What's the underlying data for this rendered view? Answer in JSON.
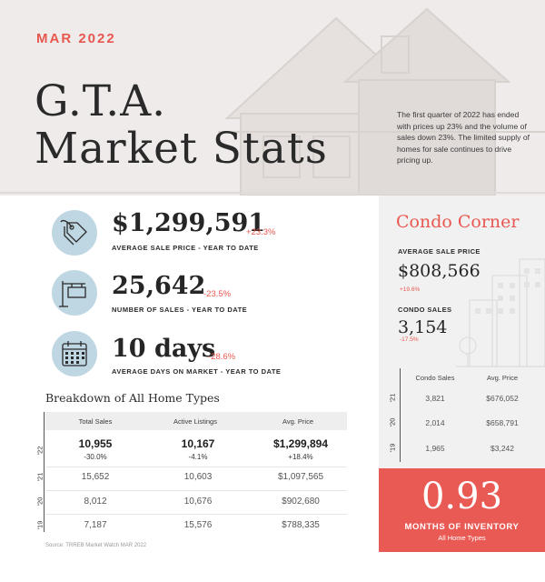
{
  "header": {
    "month": "MAR 2022",
    "title_line1": "G.T.A.",
    "title_line2": "Market Stats",
    "intro": "The first quarter of 2022 has ended with prices up 23% and the volume of sales down 23%. The limited supply of homes for sale continues to drive pricing up."
  },
  "stats": [
    {
      "icon": "price-tag-icon",
      "value": "$1,299,591",
      "change": "+23.3%",
      "label": "AVERAGE SALE PRICE - YEAR TO DATE"
    },
    {
      "icon": "for-sale-sign-icon",
      "value": "25,642",
      "change": "-23.5%",
      "label": "NUMBER OF SALES - YEAR TO DATE"
    },
    {
      "icon": "calendar-icon",
      "value": "10 days",
      "change": "-28.6%",
      "label": "AVERAGE DAYS ON MARKET - YEAR TO DATE"
    }
  ],
  "breakdown": {
    "title": "Breakdown of All Home Types",
    "headers": [
      "Total Sales",
      "Active Listings",
      "Avg. Price"
    ],
    "rows": [
      {
        "year": "'22",
        "cells": [
          "10,955",
          "10,167",
          "$1,299,894"
        ],
        "changes": [
          "-30.0%",
          "-4.1%",
          "+18.4%"
        ]
      },
      {
        "year": "'21",
        "cells": [
          "15,652",
          "10,603",
          "$1,097,565"
        ]
      },
      {
        "year": "'20",
        "cells": [
          "8,012",
          "10,676",
          "$902,680"
        ]
      },
      {
        "year": "'19",
        "cells": [
          "7,187",
          "15,576",
          "$788,335"
        ]
      }
    ],
    "source": "Source: TRREB Market Watch MAR 2022"
  },
  "condo": {
    "title": "Condo Corner",
    "avg_price_label": "AVERAGE SALE PRICE",
    "avg_price": "$808,566",
    "avg_price_change": "+19.6%",
    "sales_label": "CONDO SALES",
    "sales": "3,154",
    "sales_change": "-17.5%",
    "headers": [
      "Condo Sales",
      "Avg. Price"
    ],
    "rows": [
      {
        "year": "'21",
        "sales": "3,821",
        "price": "$676,052"
      },
      {
        "year": "'20",
        "sales": "2,014",
        "price": "$658,791"
      },
      {
        "year": "'19",
        "sales": "1,965",
        "price": "$3,242"
      }
    ]
  },
  "inventory": {
    "value": "0.93",
    "label": "MONTHS OF INVENTORY",
    "sub": "All Home Types"
  },
  "colors": {
    "accent": "#e8574f",
    "icon_circle": "#bfd6e3",
    "panel_bg": "#f1f1f1",
    "inventory_bg": "#ea5a55"
  }
}
